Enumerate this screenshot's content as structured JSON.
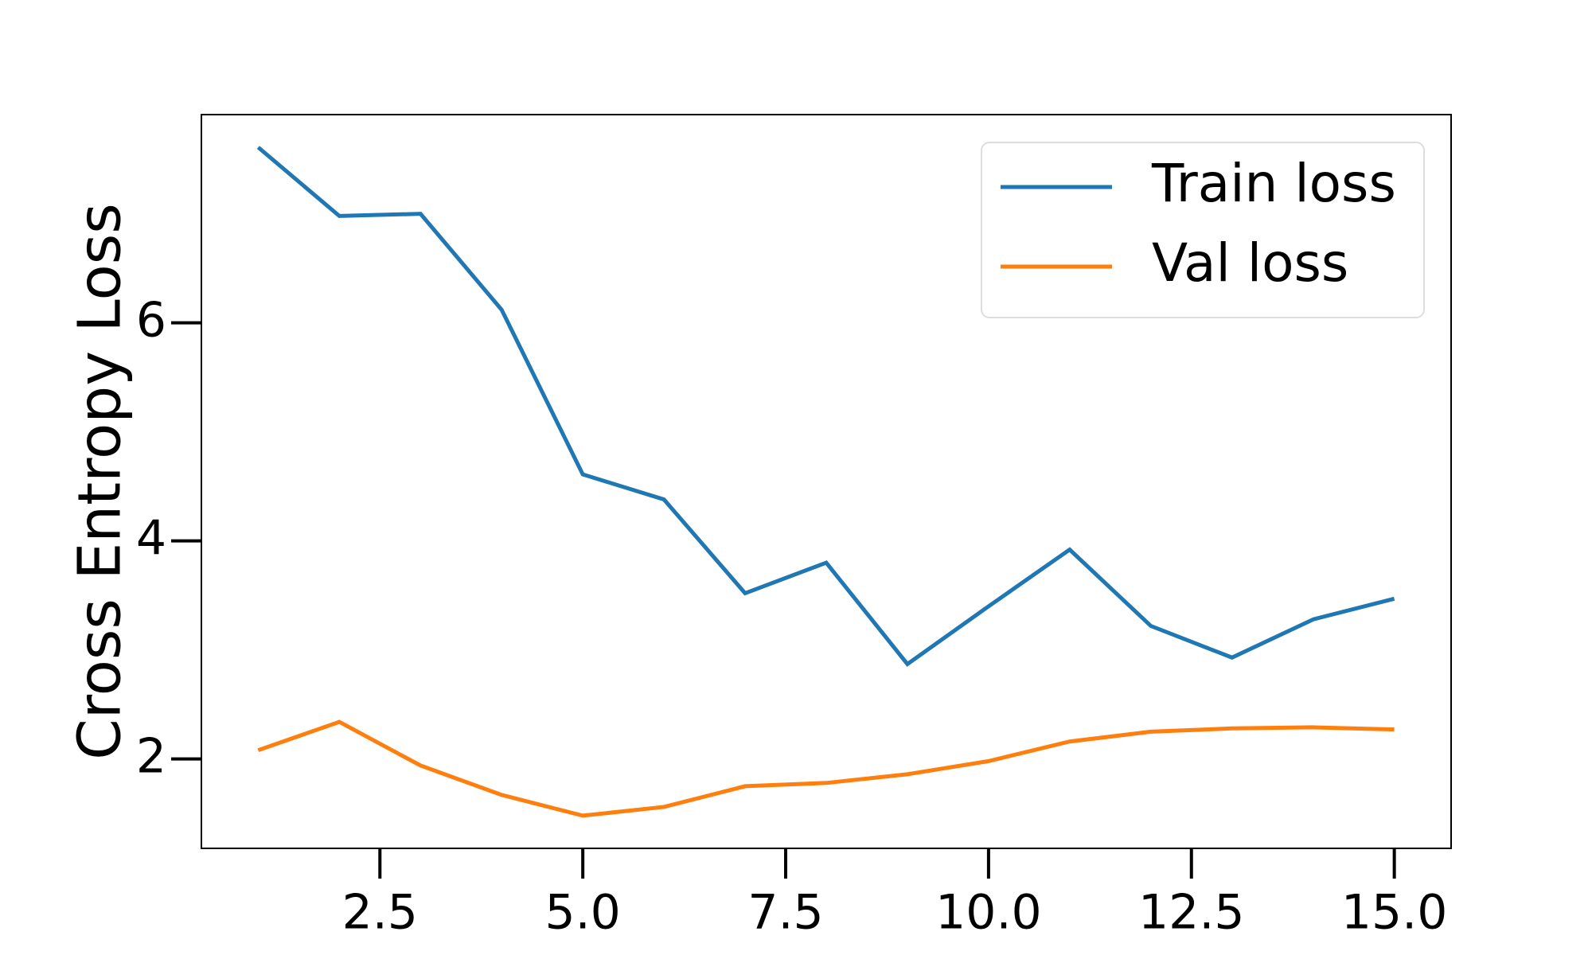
{
  "chart_data": {
    "type": "line",
    "ylabel": "Cross Entropy Loss",
    "x": [
      1,
      2,
      3,
      4,
      5,
      6,
      7,
      8,
      9,
      10,
      11,
      12,
      13,
      14,
      15
    ],
    "series": [
      {
        "name": "Train loss",
        "color": "#1f77b4",
        "values": [
          7.61,
          6.98,
          7.0,
          6.12,
          4.61,
          4.38,
          3.52,
          3.8,
          2.87,
          3.4,
          3.92,
          3.22,
          2.93,
          3.28,
          3.47
        ]
      },
      {
        "name": "Val loss",
        "color": "#ff7f0e",
        "values": [
          2.08,
          2.34,
          1.94,
          1.67,
          1.48,
          1.56,
          1.75,
          1.78,
          1.86,
          1.98,
          2.16,
          2.25,
          2.28,
          2.29,
          2.27
        ]
      }
    ],
    "xlim": [
      0.3,
      15.7
    ],
    "ylim": [
      1.18,
      7.91
    ],
    "xticks": [
      2.5,
      5.0,
      7.5,
      10.0,
      12.5,
      15.0
    ],
    "yticks": [
      2,
      4,
      6
    ],
    "legend": "upper right",
    "grid": false
  }
}
